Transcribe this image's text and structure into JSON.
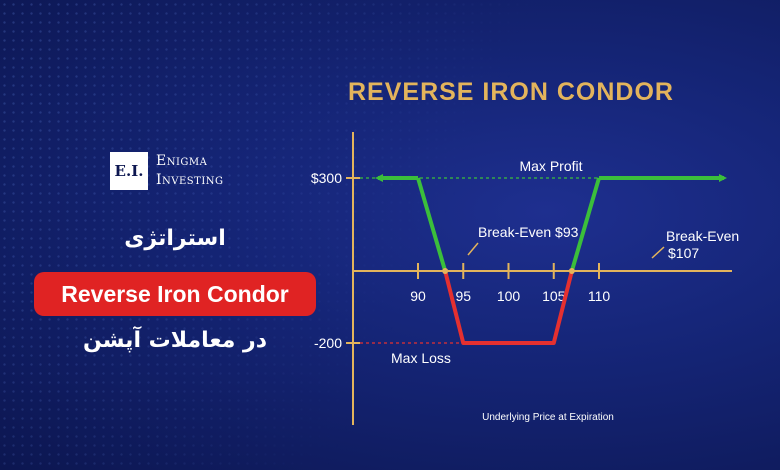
{
  "brand": {
    "logo_initials": "E.I.",
    "name_line1": "Enigma",
    "name_line2": "Investing"
  },
  "headline": {
    "line1": "استراتژی",
    "line2": "Reverse Iron Condor",
    "line3": "در معاملات آپشن"
  },
  "colors": {
    "accent_gold": "#e3b45c",
    "profit_green": "#3bbf3b",
    "loss_red": "#e53030",
    "pill_red": "#e02323"
  },
  "chart_data": {
    "type": "line",
    "title": "REVERSE IRON CONDOR",
    "xlabel": "Underlying Price at Expiration",
    "x_ticks": [
      90,
      95,
      100,
      105,
      110
    ],
    "y_ticks": [
      {
        "value": 300,
        "label": "$300"
      },
      {
        "value": -200,
        "label": "-200"
      }
    ],
    "series": [
      {
        "x": [
          80,
          90,
          93,
          95,
          105,
          107,
          110,
          120
        ],
        "y": [
          300,
          300,
          0,
          -200,
          -200,
          0,
          300,
          300
        ]
      }
    ],
    "annotations": {
      "max_profit": "Max Profit",
      "max_loss": "Max Loss",
      "break_even_low": "Break-Even $93",
      "break_even_high_1": "Break-Even",
      "break_even_high_2": "$107"
    }
  }
}
